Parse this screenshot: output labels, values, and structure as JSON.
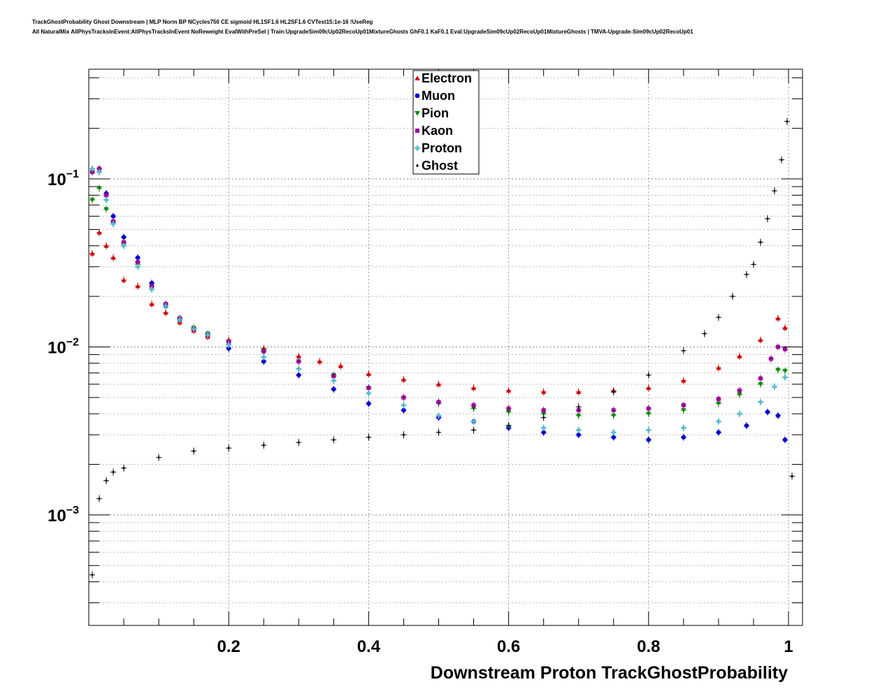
{
  "header": {
    "title_line1": "TrackGhostProbability Ghost Downstream | MLP Norm BP NCycles750 CE sigmoid HL1SF1.6 HL2SF1.6 CVTest15:1e-16 !UseReg",
    "title_line2": "All NaturalMix AllPhysTracksInEvent:AllPhysTracksInEvent NoReweight EvalWithPreSel | Train:UpgradeSim09cUp02RecoUp01MixtureGhosts GhF0.1 KaF0.1 Eval:UpgradeSim09cUp02RecoUp01MixtureGhosts | TMVA-Upgrade-Sim09cUp02RecoUp01"
  },
  "chart_data": {
    "type": "scatter",
    "xlabel": "Downstream Proton TrackGhostProbability",
    "ylabel": "",
    "xlim": [
      0,
      1.02
    ],
    "ylim": [
      0.00022,
      0.45
    ],
    "yscale": "log",
    "grid": true,
    "legend_position": "top-center",
    "x_ticks": [
      {
        "value": 0.2,
        "label": "0.2"
      },
      {
        "value": 0.4,
        "label": "0.4"
      },
      {
        "value": 0.6,
        "label": "0.6"
      },
      {
        "value": 0.8,
        "label": "0.8"
      },
      {
        "value": 1.0,
        "label": "1"
      }
    ],
    "y_ticks": [
      {
        "value": 0.001,
        "base": "10",
        "exp": "−3"
      },
      {
        "value": 0.01,
        "base": "10",
        "exp": "−2"
      },
      {
        "value": 0.1,
        "base": "10",
        "exp": "−1"
      }
    ],
    "series": [
      {
        "name": "Electron",
        "color": "#cc0000",
        "marker": "triangle-up",
        "anchors": [
          [
            0.005,
            0.036
          ],
          [
            0.015,
            0.048
          ],
          [
            0.025,
            0.04
          ],
          [
            0.035,
            0.034
          ],
          [
            0.05,
            0.025
          ],
          [
            0.07,
            0.023
          ],
          [
            0.09,
            0.018
          ],
          [
            0.11,
            0.016
          ],
          [
            0.13,
            0.014
          ],
          [
            0.15,
            0.0125
          ],
          [
            0.17,
            0.0115
          ],
          [
            0.2,
            0.011
          ],
          [
            0.25,
            0.0098
          ],
          [
            0.3,
            0.0088
          ],
          [
            0.33,
            0.0082
          ],
          [
            0.36,
            0.0077
          ],
          [
            0.4,
            0.0069
          ],
          [
            0.45,
            0.0064
          ],
          [
            0.5,
            0.006
          ],
          [
            0.55,
            0.0057
          ],
          [
            0.6,
            0.0055
          ],
          [
            0.65,
            0.0054
          ],
          [
            0.7,
            0.0054
          ],
          [
            0.75,
            0.0055
          ],
          [
            0.8,
            0.0057
          ],
          [
            0.85,
            0.0063
          ],
          [
            0.9,
            0.0075
          ],
          [
            0.93,
            0.0088
          ],
          [
            0.96,
            0.011
          ],
          [
            0.985,
            0.0148
          ],
          [
            0.995,
            0.013
          ]
        ]
      },
      {
        "name": "Muon",
        "color": "#0000cc",
        "marker": "circle",
        "anchors": [
          [
            0.005,
            0.11
          ],
          [
            0.015,
            0.115
          ],
          [
            0.025,
            0.082
          ],
          [
            0.035,
            0.06
          ],
          [
            0.05,
            0.045
          ],
          [
            0.07,
            0.034
          ],
          [
            0.09,
            0.024
          ],
          [
            0.11,
            0.0175
          ],
          [
            0.13,
            0.0145
          ],
          [
            0.15,
            0.0128
          ],
          [
            0.17,
            0.0118
          ],
          [
            0.2,
            0.0098
          ],
          [
            0.25,
            0.0082
          ],
          [
            0.3,
            0.0068
          ],
          [
            0.35,
            0.0056
          ],
          [
            0.4,
            0.0046
          ],
          [
            0.45,
            0.0042
          ],
          [
            0.5,
            0.0038
          ],
          [
            0.55,
            0.0036
          ],
          [
            0.6,
            0.0033
          ],
          [
            0.65,
            0.0031
          ],
          [
            0.7,
            0.003
          ],
          [
            0.75,
            0.0029
          ],
          [
            0.8,
            0.0028
          ],
          [
            0.85,
            0.0029
          ],
          [
            0.9,
            0.0031
          ],
          [
            0.94,
            0.0034
          ],
          [
            0.97,
            0.0041
          ],
          [
            0.985,
            0.0039
          ],
          [
            0.995,
            0.0028
          ]
        ]
      },
      {
        "name": "Pion",
        "color": "#008800",
        "marker": "triangle-down",
        "anchors": [
          [
            0.005,
            0.075
          ],
          [
            0.015,
            0.088
          ],
          [
            0.025,
            0.066
          ],
          [
            0.035,
            0.054
          ],
          [
            0.05,
            0.041
          ],
          [
            0.07,
            0.031
          ],
          [
            0.09,
            0.023
          ],
          [
            0.11,
            0.018
          ],
          [
            0.13,
            0.0148
          ],
          [
            0.15,
            0.013
          ],
          [
            0.17,
            0.012
          ],
          [
            0.2,
            0.0107
          ],
          [
            0.25,
            0.0095
          ],
          [
            0.3,
            0.0082
          ],
          [
            0.35,
            0.0068
          ],
          [
            0.4,
            0.0057
          ],
          [
            0.45,
            0.005
          ],
          [
            0.5,
            0.0046
          ],
          [
            0.55,
            0.0043
          ],
          [
            0.6,
            0.0041
          ],
          [
            0.65,
            0.004
          ],
          [
            0.7,
            0.0039
          ],
          [
            0.75,
            0.0039
          ],
          [
            0.8,
            0.004
          ],
          [
            0.85,
            0.0042
          ],
          [
            0.9,
            0.0046
          ],
          [
            0.93,
            0.0052
          ],
          [
            0.96,
            0.006
          ],
          [
            0.985,
            0.0073
          ],
          [
            0.995,
            0.0072
          ]
        ]
      },
      {
        "name": "Kaon",
        "color": "#990099",
        "marker": "square",
        "anchors": [
          [
            0.005,
            0.11
          ],
          [
            0.015,
            0.115
          ],
          [
            0.025,
            0.08
          ],
          [
            0.035,
            0.056
          ],
          [
            0.05,
            0.042
          ],
          [
            0.07,
            0.032
          ],
          [
            0.09,
            0.023
          ],
          [
            0.11,
            0.018
          ],
          [
            0.13,
            0.0148
          ],
          [
            0.15,
            0.0128
          ],
          [
            0.17,
            0.0118
          ],
          [
            0.2,
            0.0107
          ],
          [
            0.25,
            0.0094
          ],
          [
            0.3,
            0.0082
          ],
          [
            0.35,
            0.0067
          ],
          [
            0.4,
            0.0057
          ],
          [
            0.45,
            0.005
          ],
          [
            0.5,
            0.0047
          ],
          [
            0.55,
            0.0045
          ],
          [
            0.6,
            0.0043
          ],
          [
            0.65,
            0.0042
          ],
          [
            0.7,
            0.0042
          ],
          [
            0.75,
            0.0042
          ],
          [
            0.8,
            0.0043
          ],
          [
            0.85,
            0.0045
          ],
          [
            0.9,
            0.0049
          ],
          [
            0.93,
            0.0055
          ],
          [
            0.96,
            0.0065
          ],
          [
            0.975,
            0.0085
          ],
          [
            0.985,
            0.01
          ],
          [
            0.995,
            0.0097
          ]
        ]
      },
      {
        "name": "Proton",
        "color": "#55bbcc",
        "marker": "cross",
        "anchors": [
          [
            0.005,
            0.115
          ],
          [
            0.015,
            0.11
          ],
          [
            0.025,
            0.075
          ],
          [
            0.035,
            0.054
          ],
          [
            0.05,
            0.04
          ],
          [
            0.07,
            0.03
          ],
          [
            0.09,
            0.022
          ],
          [
            0.11,
            0.0175
          ],
          [
            0.13,
            0.0145
          ],
          [
            0.15,
            0.0128
          ],
          [
            0.17,
            0.0118
          ],
          [
            0.2,
            0.0103
          ],
          [
            0.25,
            0.0087
          ],
          [
            0.3,
            0.0074
          ],
          [
            0.35,
            0.0063
          ],
          [
            0.4,
            0.0053
          ],
          [
            0.45,
            0.0045
          ],
          [
            0.5,
            0.0039
          ],
          [
            0.55,
            0.0036
          ],
          [
            0.6,
            0.0034
          ],
          [
            0.65,
            0.0033
          ],
          [
            0.7,
            0.0032
          ],
          [
            0.75,
            0.0031
          ],
          [
            0.8,
            0.0032
          ],
          [
            0.85,
            0.0033
          ],
          [
            0.9,
            0.0036
          ],
          [
            0.93,
            0.004
          ],
          [
            0.96,
            0.0047
          ],
          [
            0.98,
            0.0058
          ],
          [
            0.995,
            0.0066
          ]
        ]
      },
      {
        "name": "Ghost",
        "color": "#000000",
        "marker": "diamond",
        "anchors": [
          [
            0.005,
            0.00044
          ],
          [
            0.015,
            0.00125
          ],
          [
            0.025,
            0.0016
          ],
          [
            0.035,
            0.0018
          ],
          [
            0.05,
            0.0019
          ],
          [
            0.1,
            0.0022
          ],
          [
            0.15,
            0.0024
          ],
          [
            0.2,
            0.0025
          ],
          [
            0.25,
            0.0026
          ],
          [
            0.3,
            0.0027
          ],
          [
            0.35,
            0.0028
          ],
          [
            0.4,
            0.0029
          ],
          [
            0.45,
            0.003
          ],
          [
            0.5,
            0.0031
          ],
          [
            0.55,
            0.0032
          ],
          [
            0.6,
            0.0034
          ],
          [
            0.65,
            0.0038
          ],
          [
            0.7,
            0.0044
          ],
          [
            0.75,
            0.0054
          ],
          [
            0.8,
            0.0068
          ],
          [
            0.85,
            0.0095
          ],
          [
            0.88,
            0.012
          ],
          [
            0.9,
            0.015
          ],
          [
            0.92,
            0.02
          ],
          [
            0.94,
            0.027
          ],
          [
            0.95,
            0.031
          ],
          [
            0.96,
            0.042
          ],
          [
            0.97,
            0.058
          ],
          [
            0.98,
            0.085
          ],
          [
            0.99,
            0.13
          ],
          [
            0.998,
            0.22
          ],
          [
            1.005,
            0.0017
          ]
        ]
      }
    ]
  }
}
